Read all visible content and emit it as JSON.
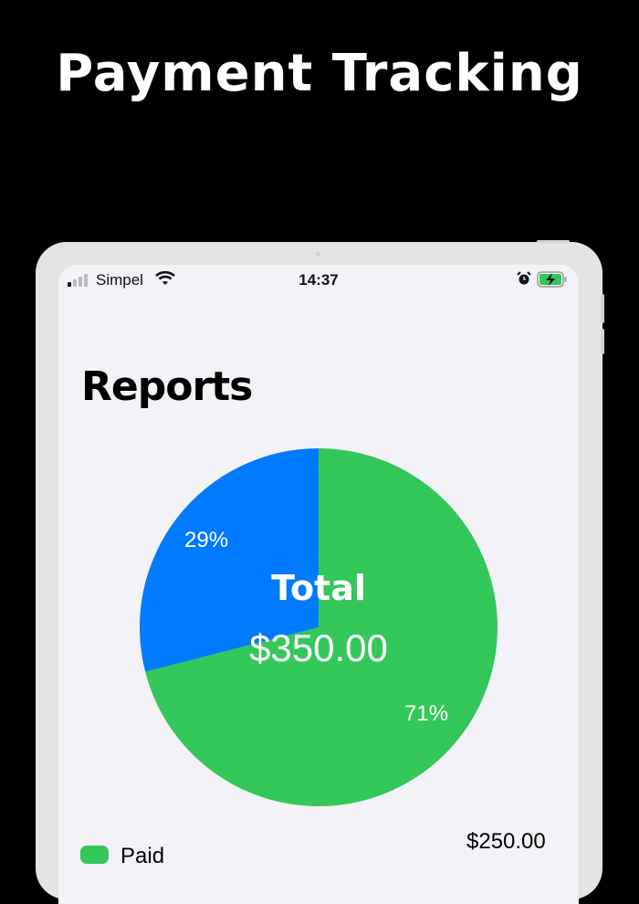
{
  "headline": "Payment Tracking",
  "status_bar": {
    "carrier": "Simpel",
    "time": "14:37",
    "icons": [
      "signal-icon",
      "wifi-icon",
      "alarm-icon",
      "battery-charging-icon"
    ]
  },
  "page": {
    "title": "Reports"
  },
  "chart_data": {
    "type": "pie",
    "slices": [
      {
        "label": "71%",
        "value": 71,
        "color": "#34c759"
      },
      {
        "label": "29%",
        "value": 29,
        "color": "#007aff"
      }
    ],
    "center_title": "Total",
    "center_value": "$350.00"
  },
  "legend": [
    {
      "label": "Paid",
      "value": "$250.00",
      "color": "#34c759"
    }
  ]
}
